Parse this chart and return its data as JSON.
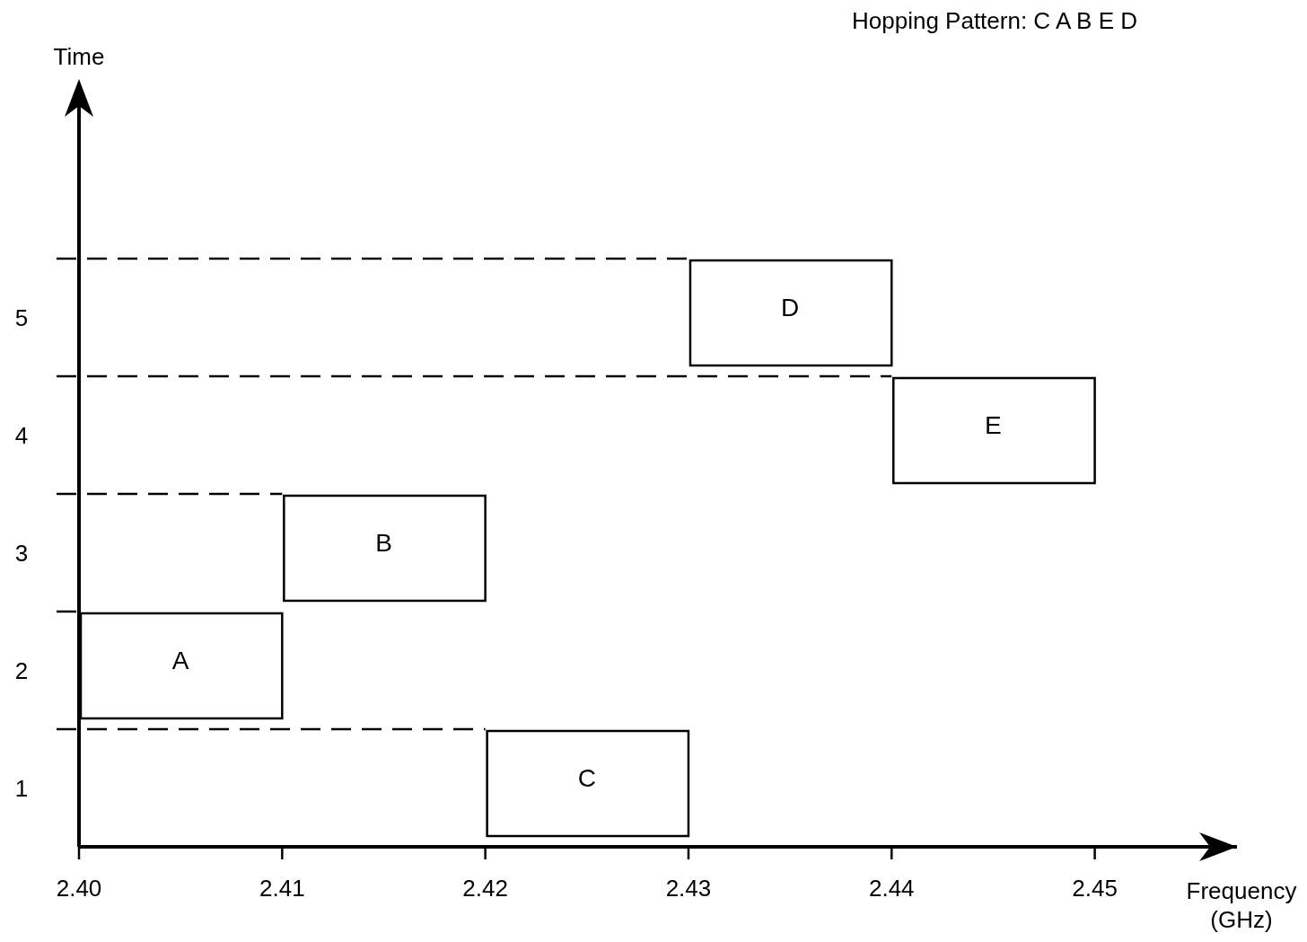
{
  "chart_data": {
    "type": "bar",
    "orientation": "horizontal",
    "title": "Hopping Pattern: C A B E D",
    "xlabel": "Frequency (GHz)",
    "categories": [
      "5",
      "4",
      "3",
      "2",
      "1"
    ],
    "values": [
      0.01,
      0.01,
      0.01,
      0.01,
      0.01
    ],
    "base": [
      2.43,
      2.44,
      2.41,
      2.4,
      2.42
    ],
    "color": "#ffffff",
    "xlim": [
      2.4,
      2.457
    ],
    "xticks": [
      {
        "value": 2.4,
        "label": "2.40"
      },
      2.41,
      2.42,
      2.43,
      2.44,
      {
        "value": 2.45,
        "label": "2.45"
      }
    ],
    "line_style": "dashed",
    "annotations": [
      "Time",
      {
        "text": "D",
        "x": 2.435,
        "y": "5"
      },
      {
        "text": "E",
        "x": 2.445,
        "y": "4"
      },
      {
        "text": "B",
        "x": 2.415,
        "y": "3"
      },
      {
        "text": "A",
        "x": 2.405,
        "y": "2"
      },
      {
        "text": "C",
        "x": 2.425,
        "y": "1"
      }
    ]
  }
}
